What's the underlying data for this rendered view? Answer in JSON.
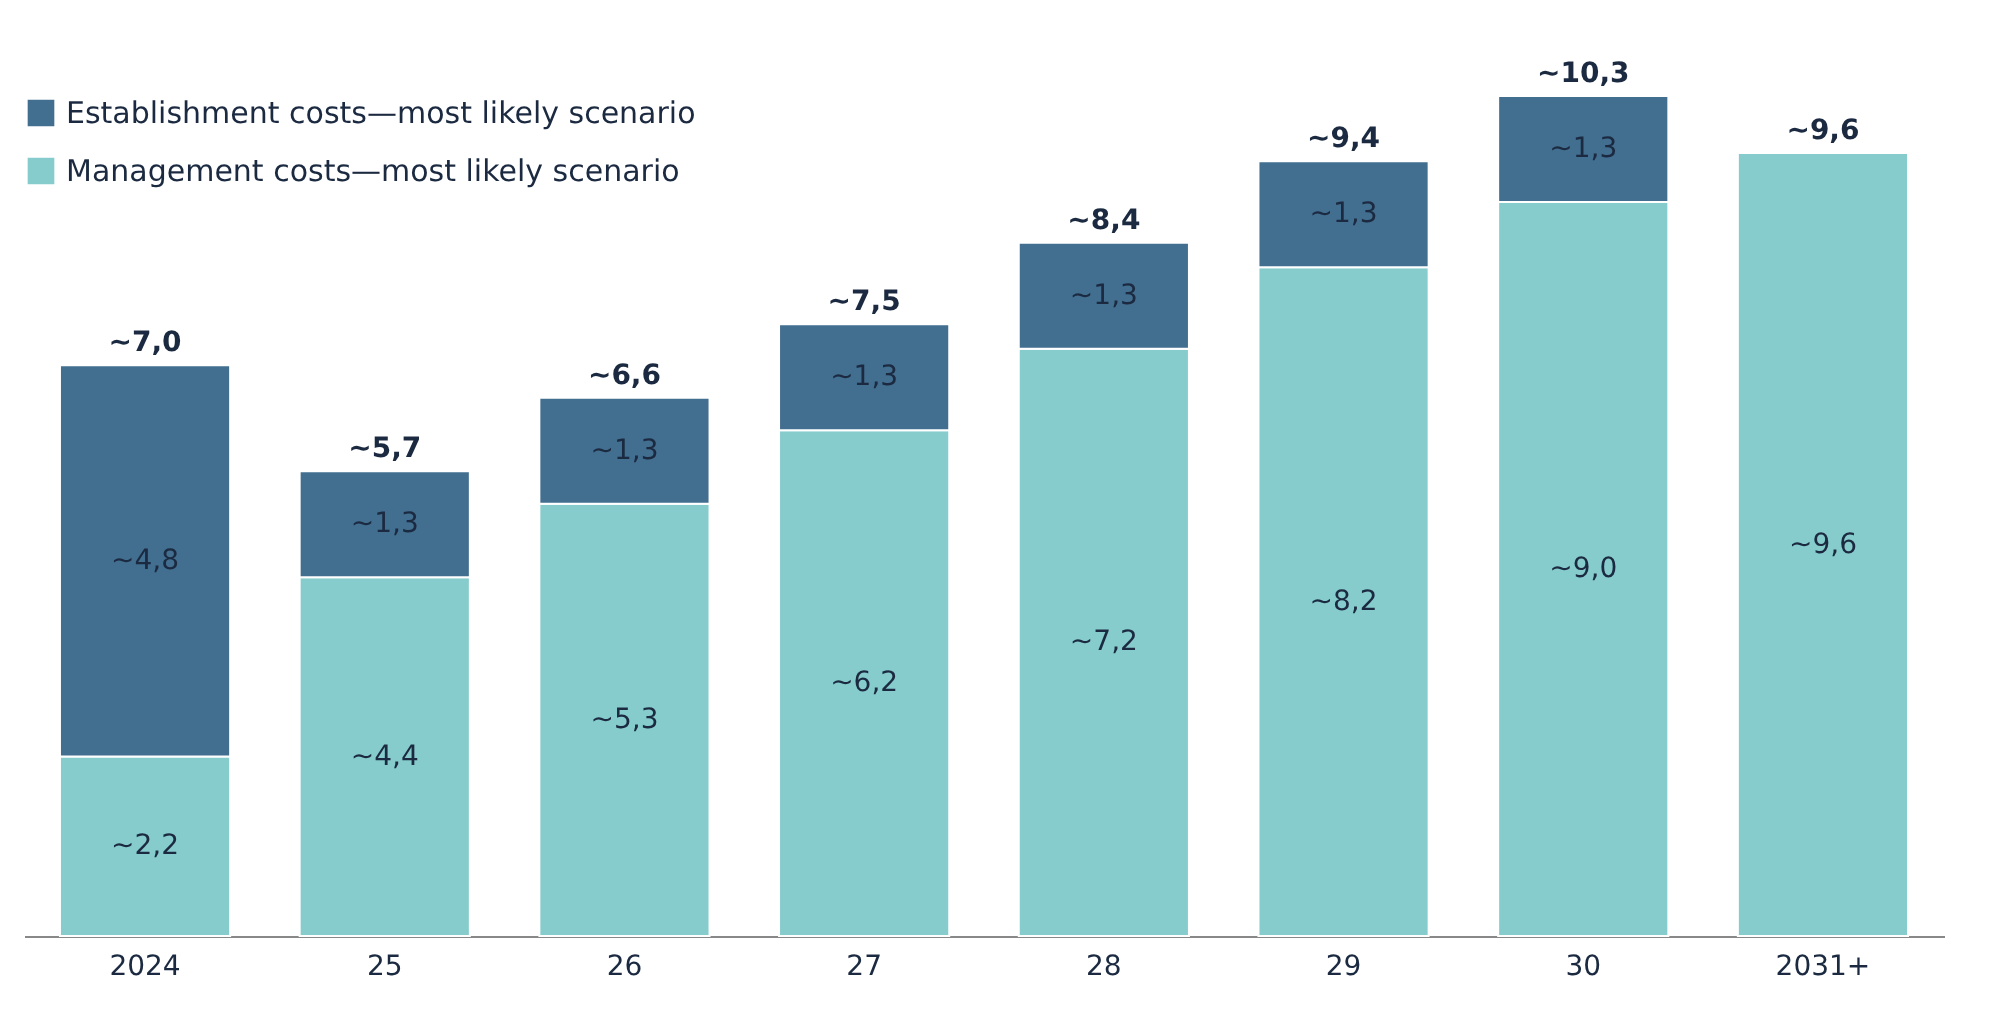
{
  "chart_data": {
    "type": "bar",
    "stacked": true,
    "legend": "top left",
    "tick_labels": "x",
    "grid": false,
    "categories": [
      "2024",
      "25",
      "26",
      "27",
      "28",
      "29",
      "30",
      "2031+"
    ],
    "series": [
      {
        "name": "Management costs—most likely scenario",
        "color": "#86cccc",
        "values": [
          2.2,
          4.4,
          5.3,
          6.2,
          7.2,
          8.2,
          9.0,
          9.6
        ],
        "value_labels": [
          "~2,2",
          "~4,4",
          "~5,3",
          "~6,2",
          "~7,2",
          "~8,2",
          "~9,0",
          "~9,6"
        ]
      },
      {
        "name": "Establishment costs—most likely scenario",
        "color": "#426e8f",
        "values": [
          4.8,
          1.3,
          1.3,
          1.3,
          1.3,
          1.3,
          1.3,
          null
        ],
        "value_labels": [
          "~4,8",
          "~1,3",
          "~1,3",
          "~1,3",
          "~1,3",
          "~1,3",
          "~1,3",
          null
        ]
      }
    ],
    "totals": [
      "~7,0",
      "~5,7",
      "~6,6",
      "~7,5",
      "~8,4",
      "~9,4",
      "~10,3",
      "~9,6"
    ]
  }
}
